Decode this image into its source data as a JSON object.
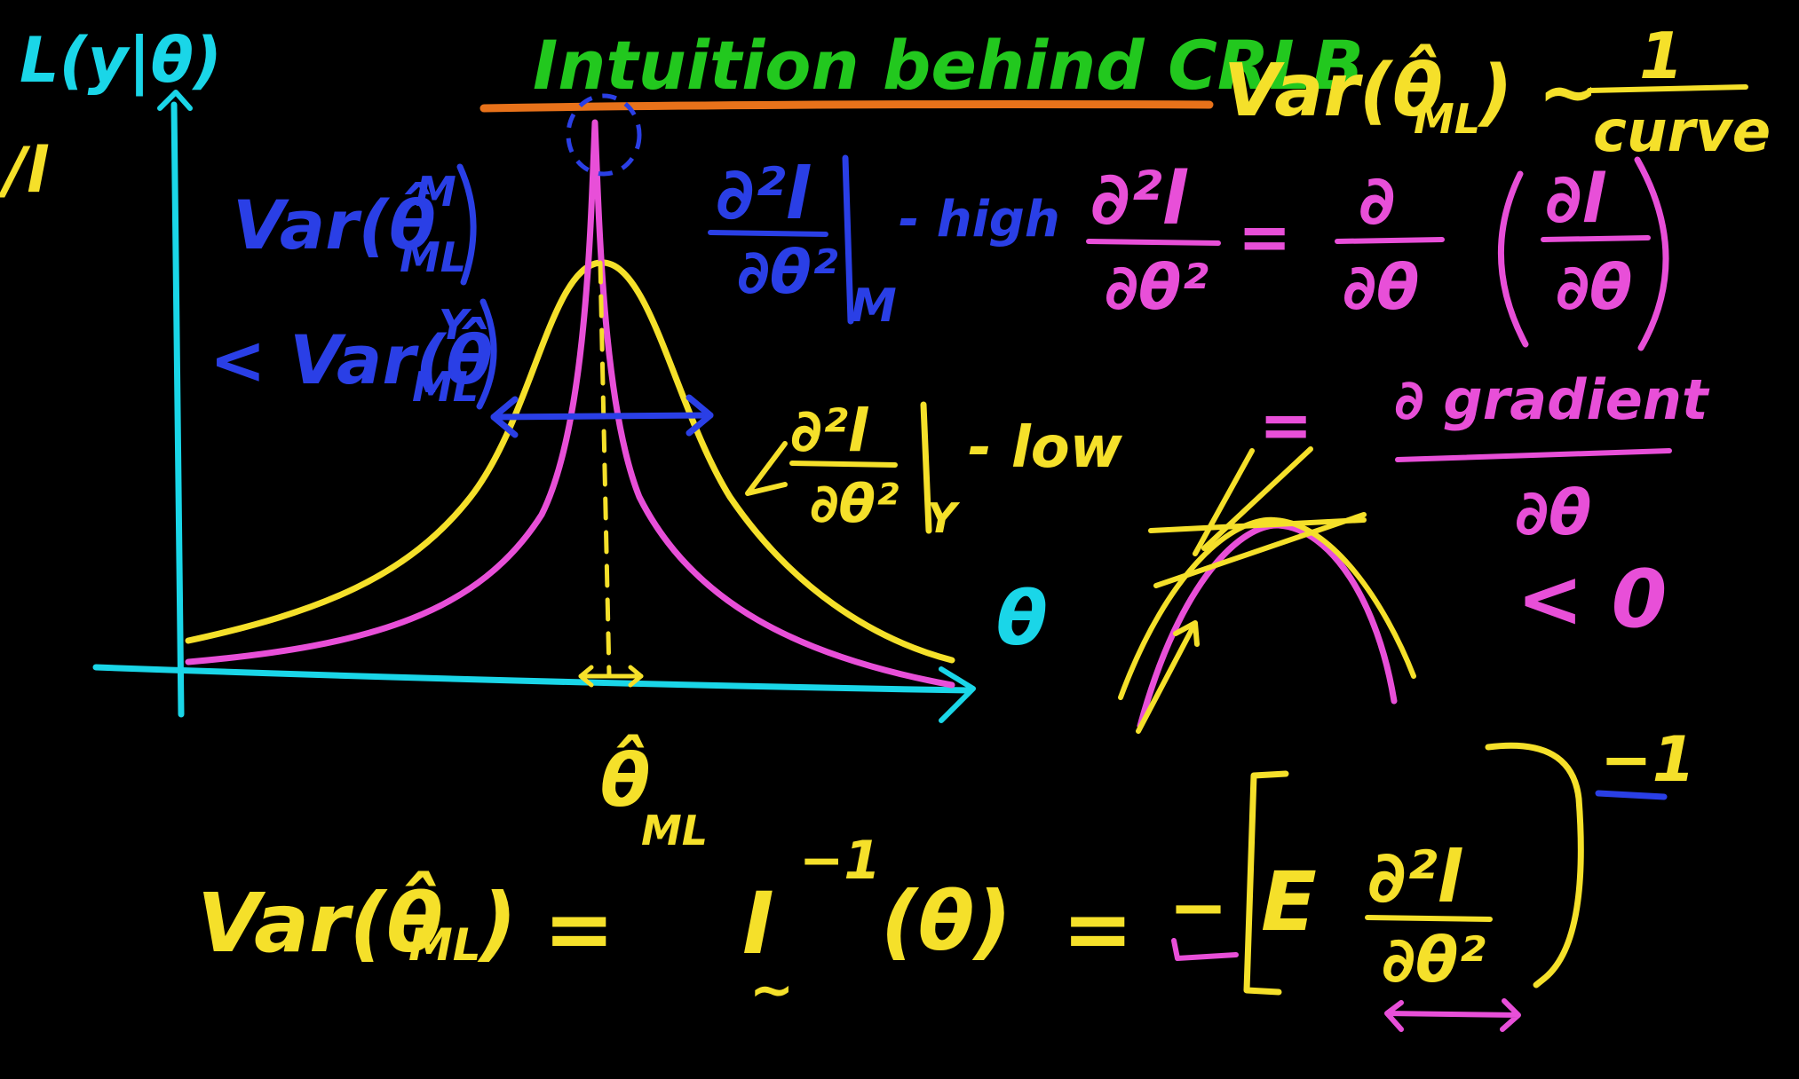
{
  "title": "Intuition behind CRLB",
  "colors": {
    "background": "#000000",
    "cyan": "#1ad6e8",
    "green": "#22c81e",
    "orange": "#e8721a",
    "yellow": "#f5e02a",
    "pink": "#e84fd8",
    "blue": "#2a3fe6"
  },
  "notes": {
    "likelihood_axis": "L(y|θ)",
    "log_likelihood": "/l",
    "var_m": "Var(θ̂",
    "var_m_sup": "M",
    "var_m_sub": "ML",
    "less_var_y": "< Var(θ̂",
    "var_y_sup": "Y",
    "var_y_sub": "ML",
    "second_deriv": "∂²l",
    "second_deriv_den": "∂θ²",
    "eval_m": "M",
    "high": "- high",
    "eval_y": "Y",
    "low": "- low",
    "theta_axis": "θ",
    "theta_ml": "θ̂",
    "theta_ml_sub": "ML",
    "var_curve_lhs": "Var(θ̂",
    "var_curve_sub": "ML",
    "var_curve_rhs": ") ~",
    "curve_num": "1",
    "curve_den": "curve",
    "d2l": "∂²l",
    "d2l_den": "∂θ²",
    "eq": "=",
    "d_num": "∂",
    "d_den": "∂θ",
    "dl_num": "∂l",
    "dl_den": "∂θ",
    "gradient_num": "∂ gradient",
    "gradient_den": "∂θ",
    "less_zero": "< 0",
    "bottom_var": "Var(θ̂",
    "bottom_var_sub": "ML",
    "bottom_var_close": ")",
    "bottom_eq1": "=",
    "fisher": "I",
    "fisher_tilde": "~",
    "fisher_exp": "−1",
    "fisher_arg": "(θ)",
    "bottom_eq2": "=",
    "minus": "−",
    "expect": "E",
    "bottom_d2l": "∂²l",
    "bottom_d2l_den": "∂θ²",
    "outer_exp": "−1"
  }
}
